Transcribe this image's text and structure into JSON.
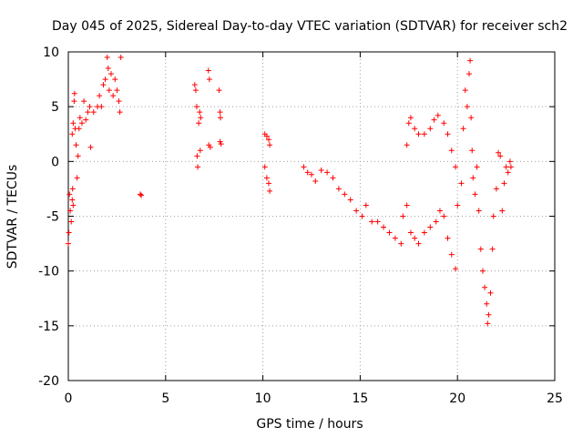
{
  "chart_data": {
    "type": "scatter",
    "title": "Day 045 of 2025, Sidereal Day-to-day VTEC variation (SDTVAR) for receiver sch2",
    "xlabel": "GPS time / hours",
    "ylabel": "SDTVAR / TECUs",
    "xlim": [
      0,
      25
    ],
    "ylim": [
      -20,
      10
    ],
    "xticks": [
      0,
      5,
      10,
      15,
      20,
      25
    ],
    "yticks": [
      -20,
      -15,
      -10,
      -5,
      0,
      5,
      10
    ],
    "xtick_labels": [
      "0",
      "5",
      "10",
      "15",
      "20",
      "25"
    ],
    "ytick_labels": [
      "-20",
      "-15",
      "-10",
      "-5",
      "0",
      "5",
      "10"
    ],
    "grid": true,
    "marker": "+",
    "color": "#ff0000",
    "series": [
      {
        "name": "SDTVAR",
        "points": [
          [
            0.0,
            -7.5
          ],
          [
            0.03,
            -6.5
          ],
          [
            0.06,
            -3.0
          ],
          [
            0.1,
            -4.5
          ],
          [
            0.15,
            -5.5
          ],
          [
            0.2,
            -3.5
          ],
          [
            0.22,
            -2.5
          ],
          [
            0.25,
            -4.0
          ],
          [
            0.2,
            2.5
          ],
          [
            0.25,
            3.5
          ],
          [
            0.3,
            5.5
          ],
          [
            0.32,
            6.2
          ],
          [
            0.35,
            3.0
          ],
          [
            0.4,
            1.5
          ],
          [
            0.45,
            -1.5
          ],
          [
            0.5,
            0.5
          ],
          [
            0.55,
            3.0
          ],
          [
            0.6,
            4.0
          ],
          [
            0.7,
            3.5
          ],
          [
            0.8,
            5.5
          ],
          [
            0.9,
            3.8
          ],
          [
            1.0,
            4.5
          ],
          [
            1.1,
            5.0
          ],
          [
            1.15,
            1.3
          ],
          [
            1.3,
            4.5
          ],
          [
            1.5,
            5.0
          ],
          [
            1.6,
            6.0
          ],
          [
            1.7,
            5.0
          ],
          [
            1.8,
            7.0
          ],
          [
            1.9,
            7.5
          ],
          [
            2.0,
            9.5
          ],
          [
            2.05,
            8.5
          ],
          [
            2.1,
            6.5
          ],
          [
            2.2,
            8.0
          ],
          [
            2.3,
            6.0
          ],
          [
            2.4,
            7.5
          ],
          [
            2.5,
            6.5
          ],
          [
            2.6,
            5.5
          ],
          [
            2.65,
            4.5
          ],
          [
            2.7,
            9.5
          ],
          [
            3.7,
            -3.0
          ],
          [
            3.75,
            -3.1
          ],
          [
            6.5,
            7.0
          ],
          [
            6.55,
            6.5
          ],
          [
            6.6,
            5.0
          ],
          [
            6.62,
            0.5
          ],
          [
            6.65,
            -0.5
          ],
          [
            6.7,
            3.5
          ],
          [
            6.75,
            4.5
          ],
          [
            6.8,
            4.0
          ],
          [
            6.78,
            1.0
          ],
          [
            7.2,
            8.3
          ],
          [
            7.25,
            7.5
          ],
          [
            7.22,
            1.5
          ],
          [
            7.3,
            1.3
          ],
          [
            7.75,
            6.5
          ],
          [
            7.8,
            4.5
          ],
          [
            7.82,
            4.0
          ],
          [
            7.8,
            1.8
          ],
          [
            7.85,
            1.6
          ],
          [
            10.1,
            2.5
          ],
          [
            10.2,
            2.3
          ],
          [
            10.3,
            2.0
          ],
          [
            10.35,
            1.5
          ],
          [
            10.1,
            -0.5
          ],
          [
            10.2,
            -1.5
          ],
          [
            10.3,
            -2.0
          ],
          [
            10.35,
            -2.7
          ],
          [
            12.1,
            -0.5
          ],
          [
            12.3,
            -1.0
          ],
          [
            12.5,
            -1.2
          ],
          [
            12.7,
            -1.8
          ],
          [
            13.0,
            -0.8
          ],
          [
            13.3,
            -1.0
          ],
          [
            13.6,
            -1.5
          ],
          [
            13.9,
            -2.5
          ],
          [
            14.2,
            -3.0
          ],
          [
            14.5,
            -3.5
          ],
          [
            14.8,
            -4.5
          ],
          [
            15.1,
            -5.0
          ],
          [
            15.3,
            -4.0
          ],
          [
            15.6,
            -5.5
          ],
          [
            15.9,
            -5.5
          ],
          [
            16.2,
            -6.0
          ],
          [
            16.5,
            -6.5
          ],
          [
            16.8,
            -7.0
          ],
          [
            17.1,
            -7.5
          ],
          [
            17.2,
            -5.0
          ],
          [
            17.4,
            -4.0
          ],
          [
            17.6,
            -6.5
          ],
          [
            17.8,
            -7.0
          ],
          [
            18.0,
            -7.5
          ],
          [
            18.3,
            -6.5
          ],
          [
            18.6,
            -6.0
          ],
          [
            18.9,
            -5.5
          ],
          [
            19.1,
            -4.5
          ],
          [
            19.3,
            -5.0
          ],
          [
            19.5,
            -7.0
          ],
          [
            19.7,
            -8.5
          ],
          [
            19.9,
            -9.8
          ],
          [
            17.4,
            1.5
          ],
          [
            17.5,
            3.5
          ],
          [
            17.6,
            4.0
          ],
          [
            17.8,
            3.0
          ],
          [
            18.0,
            2.5
          ],
          [
            18.3,
            2.5
          ],
          [
            18.6,
            3.0
          ],
          [
            18.8,
            3.8
          ],
          [
            19.0,
            4.2
          ],
          [
            19.3,
            3.5
          ],
          [
            19.5,
            2.5
          ],
          [
            19.7,
            1.0
          ],
          [
            19.9,
            -0.5
          ],
          [
            20.0,
            -4.0
          ],
          [
            20.2,
            -2.0
          ],
          [
            20.3,
            3.0
          ],
          [
            20.4,
            6.5
          ],
          [
            20.5,
            5.0
          ],
          [
            20.6,
            8.0
          ],
          [
            20.65,
            9.2
          ],
          [
            20.7,
            4.0
          ],
          [
            20.75,
            1.0
          ],
          [
            20.8,
            -1.5
          ],
          [
            20.9,
            -3.0
          ],
          [
            21.0,
            -0.5
          ],
          [
            21.1,
            -4.5
          ],
          [
            21.2,
            -8.0
          ],
          [
            21.3,
            -10.0
          ],
          [
            21.4,
            -11.5
          ],
          [
            21.5,
            -13.0
          ],
          [
            21.55,
            -14.8
          ],
          [
            21.6,
            -14.0
          ],
          [
            21.7,
            -12.0
          ],
          [
            21.8,
            -8.0
          ],
          [
            21.85,
            -5.0
          ],
          [
            22.0,
            -2.5
          ],
          [
            22.1,
            0.8
          ],
          [
            22.2,
            0.5
          ],
          [
            22.3,
            -4.5
          ],
          [
            22.4,
            -2.0
          ],
          [
            22.5,
            -0.5
          ],
          [
            22.6,
            -1.0
          ],
          [
            22.7,
            0.0
          ],
          [
            22.75,
            -0.5
          ]
        ]
      }
    ]
  }
}
